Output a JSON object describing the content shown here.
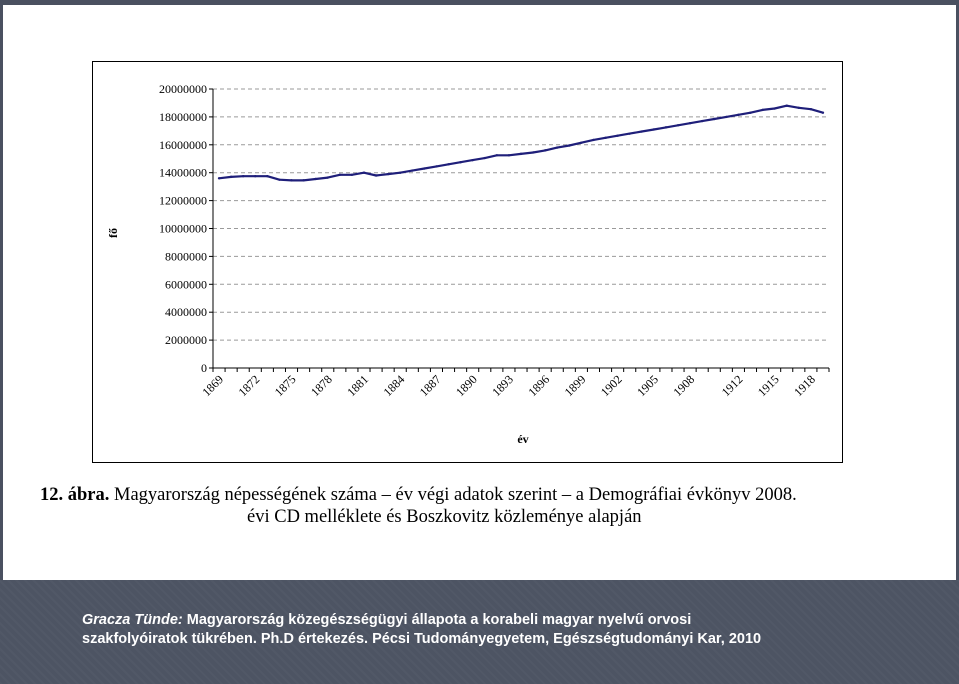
{
  "chart_data": {
    "type": "line",
    "title": "",
    "xlabel": "év",
    "ylabel": "fő",
    "ylim": [
      0,
      20000000
    ],
    "yticks": [
      0,
      2000000,
      4000000,
      6000000,
      8000000,
      10000000,
      12000000,
      14000000,
      16000000,
      18000000,
      20000000
    ],
    "ytick_labels": [
      "0",
      "2000000",
      "4000000",
      "6000000",
      "8000000",
      "10000000",
      "12000000",
      "14000000",
      "16000000",
      "18000000",
      "20000000"
    ],
    "xtick_labels": [
      "1869",
      "1872",
      "1875",
      "1878",
      "1881",
      "1884",
      "1887",
      "1890",
      "1893",
      "1896",
      "1899",
      "1902",
      "1905",
      "1908",
      "1912",
      "1915",
      "1918"
    ],
    "grid": true,
    "line_color": "#1f1f7a",
    "x": [
      "1869",
      "1870",
      "1871",
      "1872",
      "1873",
      "1874",
      "1875",
      "1876",
      "1877",
      "1878",
      "1879",
      "1880",
      "1881",
      "1882",
      "1883",
      "1884",
      "1885",
      "1886",
      "1887",
      "1888",
      "1889",
      "1890",
      "1891",
      "1892",
      "1893",
      "1894",
      "1895",
      "1896",
      "1897",
      "1898",
      "1899",
      "1900",
      "1901",
      "1902",
      "1903",
      "1904",
      "1905",
      "1906",
      "1907",
      "1908",
      "1909",
      "1910",
      "1911",
      "1912",
      "1913",
      "1914",
      "1915",
      "1916",
      "1917",
      "1918",
      "1919"
    ],
    "values": [
      13600000,
      13700000,
      13750000,
      13750000,
      13750000,
      13500000,
      13450000,
      13450000,
      13550000,
      13650000,
      13850000,
      13850000,
      14000000,
      13800000,
      13900000,
      14000000,
      14150000,
      14300000,
      14450000,
      14600000,
      14750000,
      14900000,
      15050000,
      15250000,
      15250000,
      15350000,
      15450000,
      15600000,
      15800000,
      15950000,
      16150000,
      16350000,
      16500000,
      16650000,
      16800000,
      16950000,
      17100000,
      17250000,
      17400000,
      17550000,
      17700000,
      17850000,
      18000000,
      18150000,
      18300000,
      18500000,
      18600000,
      18800000,
      18650000,
      18550000,
      18300000
    ]
  },
  "caption": {
    "label": "12. ábra.",
    "line1": " Magyarország népességének száma – év végi adatok szerint – a Demográfiai évkönyv 2008.",
    "line2": "évi CD melléklete és Boszkovitz közleménye alapján"
  },
  "footer": {
    "author": "Gracza Tünde:",
    "line1": " Magyarország közegészségügyi állapota a korabeli magyar nyelvű orvosi",
    "line2": "szakfolyóiratok tükrében. Ph.D értekezés. Pécsi Tudományegyetem, Egészségtudományi Kar, 2010"
  }
}
